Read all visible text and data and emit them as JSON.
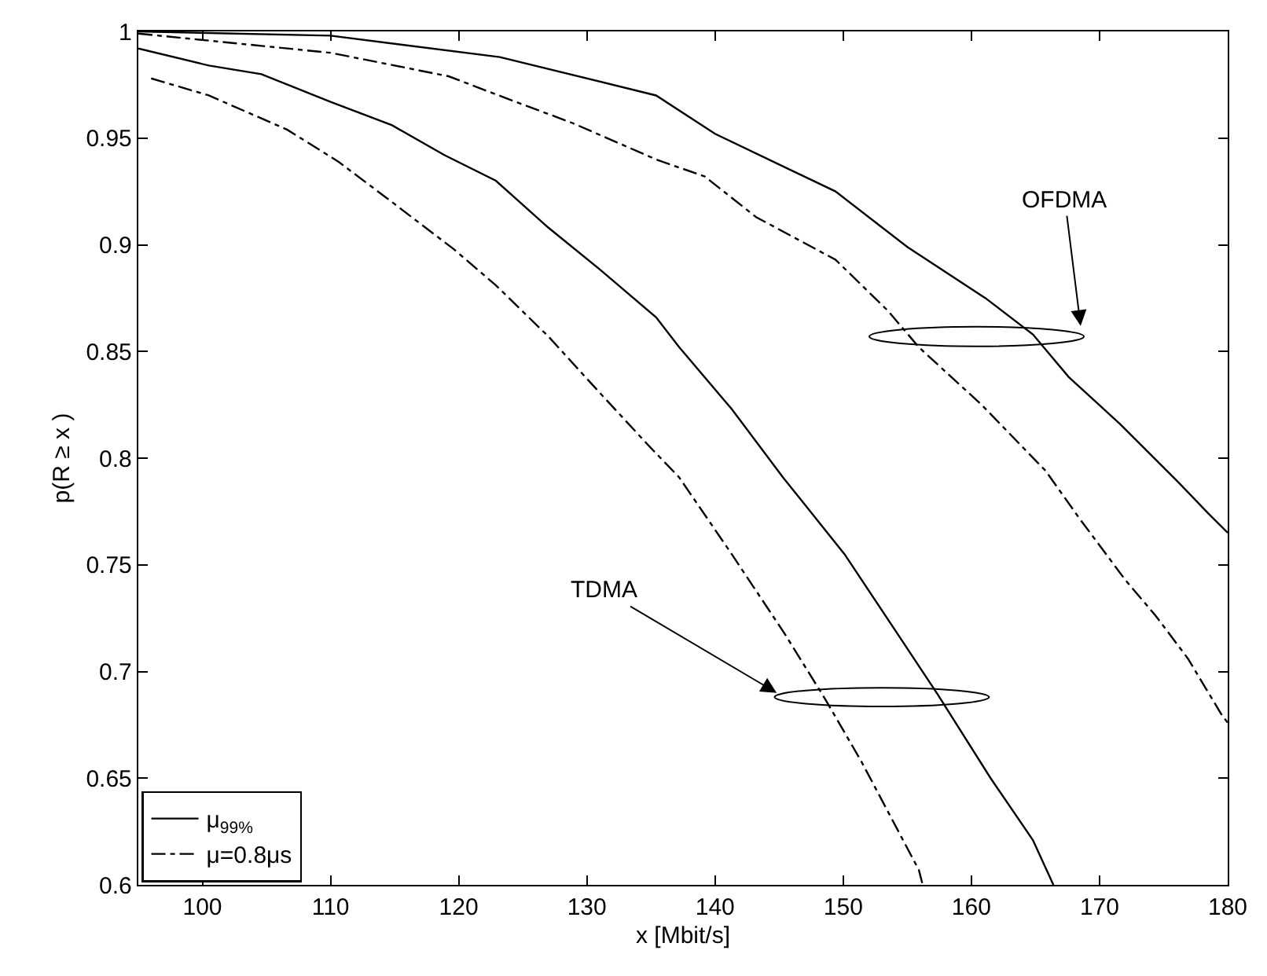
{
  "chart_data": {
    "type": "line",
    "xlabel": "x [Mbit/s]",
    "ylabel": "p(R ≥ x )",
    "xlim": [
      95,
      180
    ],
    "xticks": [
      100,
      110,
      120,
      130,
      140,
      150,
      160,
      170,
      180
    ],
    "ylim": [
      0.6,
      1
    ],
    "yticks": [
      0.6,
      0.65,
      0.7,
      0.75,
      0.8,
      0.85,
      0.9,
      0.95,
      1
    ],
    "legend": "bottom left",
    "marker": "none",
    "series": [
      {
        "name": "μ$_{99%}$",
        "color": "#000000",
        "line_style": "solid",
        "x": [
          95,
          110,
          123.2,
          135.4,
          140,
          149.4,
          155,
          161.1,
          164.8,
          167.6,
          171.6,
          176.1,
          178.5,
          180
        ],
        "values": [
          1.0,
          0.998,
          0.988,
          0.97,
          0.952,
          0.925,
          0.899,
          0.875,
          0.858,
          0.838,
          0.816,
          0.789,
          0.774,
          0.765
        ]
      },
      {
        "name": "μ=0.8μs",
        "color": "#000000",
        "line_style": "dashdot",
        "x": [
          95,
          110,
          119.2,
          124,
          128.9,
          135.4,
          139.2,
          143.2,
          149.4,
          153.5,
          155.9,
          160.8,
          165.8,
          168.4,
          172,
          174.4,
          176.9,
          179.5,
          180
        ],
        "values": [
          0.999,
          0.99,
          0.979,
          0.968,
          0.957,
          0.94,
          0.932,
          0.913,
          0.893,
          0.869,
          0.852,
          0.825,
          0.794,
          0.772,
          0.743,
          0.726,
          0.706,
          0.68,
          0.676
        ]
      },
      {
        "color": "#000000",
        "line_style": "solid",
        "x": [
          95,
          100.5,
          104.6,
          110,
          114.8,
          118.9,
          122.9,
          127,
          131.1,
          135.4,
          137.2,
          141.3,
          145.3,
          150.1,
          154.2,
          157.4,
          161.5,
          164.8,
          166.4
        ],
        "values": [
          0.992,
          0.984,
          0.98,
          0.967,
          0.956,
          0.942,
          0.93,
          0.908,
          0.888,
          0.866,
          0.852,
          0.823,
          0.791,
          0.755,
          0.718,
          0.689,
          0.65,
          0.621,
          0.6
        ]
      },
      {
        "color": "#000000",
        "line_style": "dashdot",
        "x": [
          96,
          100.5,
          106.6,
          110.6,
          114.8,
          119.6,
          122.9,
          127,
          131.1,
          134.8,
          137.2,
          141.3,
          145.4,
          148.6,
          151.4,
          155.9,
          156.2
        ],
        "values": [
          0.978,
          0.97,
          0.954,
          0.939,
          0.92,
          0.898,
          0.881,
          0.857,
          0.83,
          0.806,
          0.791,
          0.755,
          0.718,
          0.687,
          0.658,
          0.607,
          0.6
        ]
      }
    ],
    "annotations": [
      "OFDMA",
      "TDMA"
    ]
  }
}
